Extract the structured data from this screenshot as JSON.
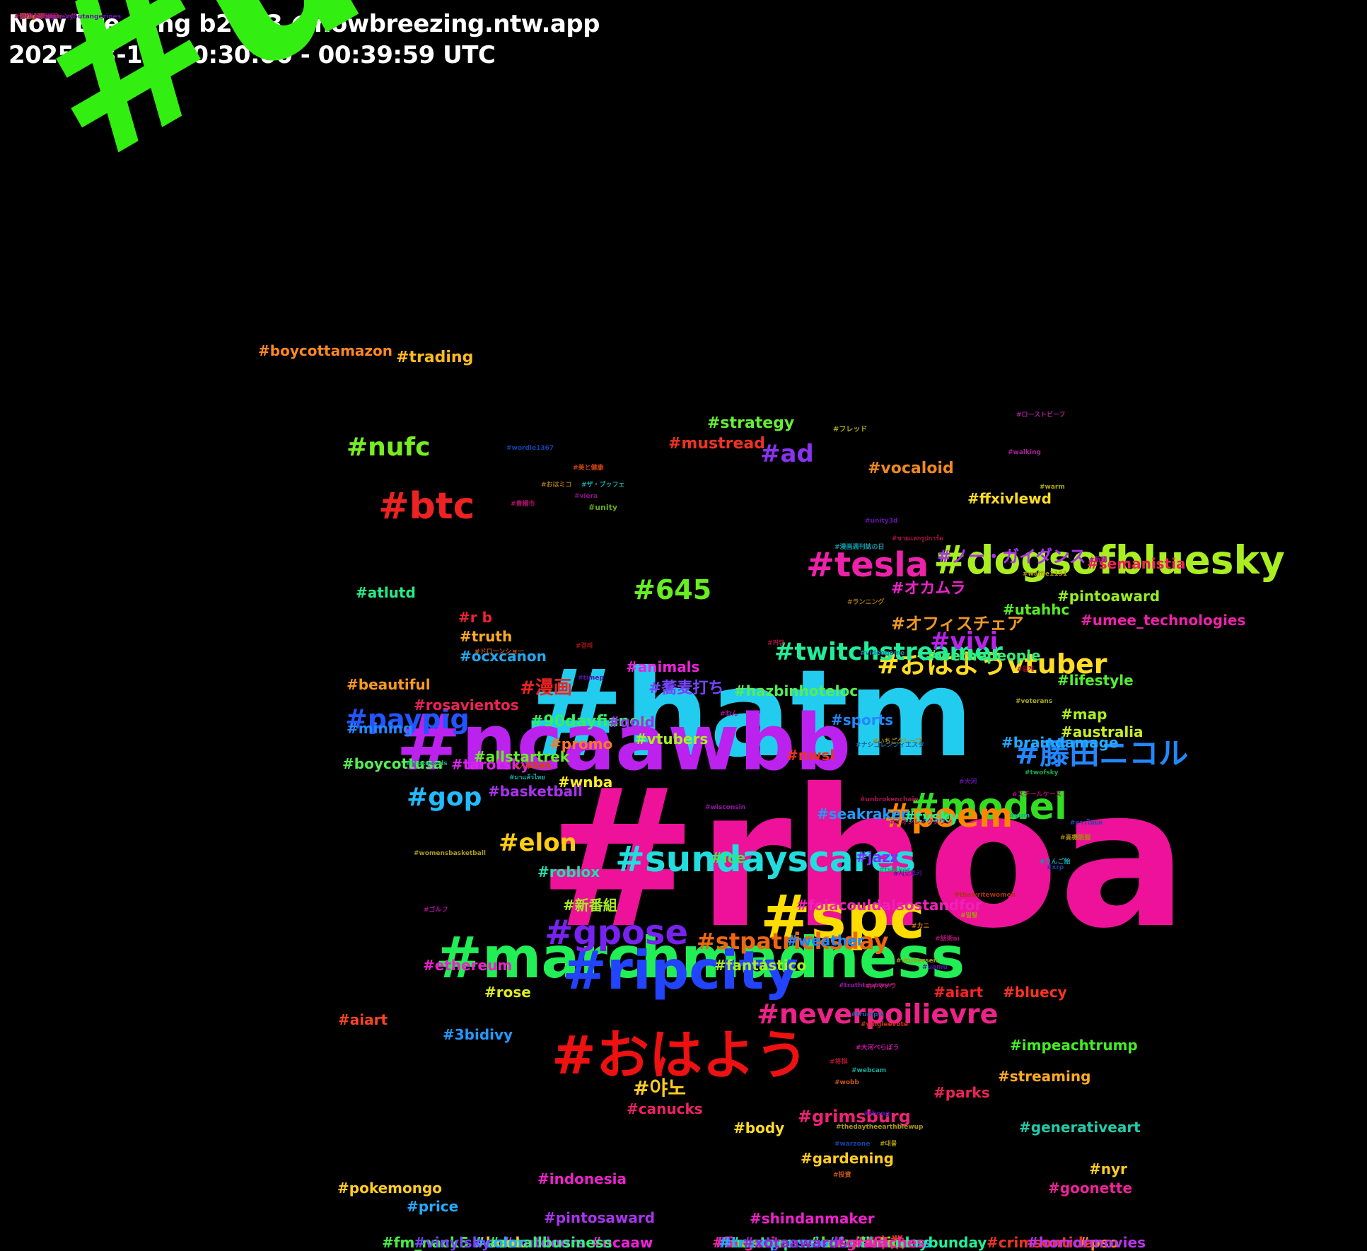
{
  "header": {
    "title": "Now Breezing b2.9.3 @nowbreezing.ntw.app",
    "subtitle": "2025-03-17, 00:30:00 - 00:39:59 UTC"
  },
  "tags": [
    {
      "text": "#unrivaled",
      "color": "#33ee11"
    },
    {
      "text": "#rhoa",
      "color": "#ee1199"
    },
    {
      "text": "#hatm",
      "color": "#22ccee"
    },
    {
      "text": "#ncaawbb",
      "color": "#bb22ee"
    },
    {
      "text": "#marchmadness",
      "color": "#22ee55"
    },
    {
      "text": "#spc",
      "color": "#ffdd00"
    },
    {
      "text": "#おはよう",
      "color": "#ee1111"
    },
    {
      "text": "#ripcity",
      "color": "#2244ff"
    },
    {
      "text": "#sundayscares",
      "color": "#22dddd"
    },
    {
      "text": "#model",
      "color": "#33dd22"
    },
    {
      "text": "#gpose",
      "color": "#7722ee"
    },
    {
      "text": "#dogsofbluesky",
      "color": "#aaee22"
    },
    {
      "text": "#tesla",
      "color": "#ee22aa"
    },
    {
      "text": "#poem",
      "color": "#ff8800"
    },
    {
      "text": "#neverpoilievre",
      "color": "#ee2288"
    },
    {
      "text": "#btc",
      "color": "#ee2222"
    },
    {
      "text": "#藤田ニコル",
      "color": "#2288ff"
    },
    {
      "text": "#おはようvtuber",
      "color": "#ffdd22"
    },
    {
      "text": "#paypig",
      "color": "#2255ff"
    },
    {
      "text": "#twitchstreamer",
      "color": "#22ee99"
    },
    {
      "text": "#stpatricksday",
      "color": "#ee6611"
    },
    {
      "text": "#nufc",
      "color": "#77ee22"
    },
    {
      "text": "#ad",
      "color": "#8833ee"
    },
    {
      "text": "#645",
      "color": "#66ee22"
    },
    {
      "text": "#vivi",
      "color": "#bb22ee"
    },
    {
      "text": "#gop",
      "color": "#22bbff"
    },
    {
      "text": "#elon",
      "color": "#ffcc11"
    },
    {
      "text": "#야노",
      "color": "#ffcc22"
    },
    {
      "text": "#grimsburg",
      "color": "#ee2277"
    },
    {
      "text": "#漫画",
      "color": "#ee2222"
    },
    {
      "text": "#90dayfiance",
      "color": "#33ee66"
    },
    {
      "text": "#strategy",
      "color": "#66ee33"
    },
    {
      "text": "#mustread",
      "color": "#ee3322"
    },
    {
      "text": "#trading",
      "color": "#ffbb22"
    },
    {
      "text": "#boycottamazon",
      "color": "#ff8822"
    },
    {
      "text": "#vocaloid",
      "color": "#ee8822"
    },
    {
      "text": "#ffxivlewd",
      "color": "#ffdd22"
    },
    {
      "text": "#ノー・ガイダンス",
      "color": "#aa33ee"
    },
    {
      "text": "#semanistia",
      "color": "#ee2255"
    },
    {
      "text": "#pintoaward",
      "color": "#99ee22"
    },
    {
      "text": "#オカムラ",
      "color": "#ee22cc"
    },
    {
      "text": "#utahhc",
      "color": "#55ee22"
    },
    {
      "text": "#オフィスチェア",
      "color": "#ee9922"
    },
    {
      "text": "#umee_technologies",
      "color": "#ee22aa"
    },
    {
      "text": "#wethepeople",
      "color": "#33ee77"
    },
    {
      "text": "#lifestyle",
      "color": "#55ee33"
    },
    {
      "text": "#map",
      "color": "#aaee22"
    },
    {
      "text": "#australia",
      "color": "#ccee22"
    },
    {
      "text": "#braindamage",
      "color": "#22aaff"
    },
    {
      "text": "#atlutd",
      "color": "#22ee88"
    },
    {
      "text": "#r b",
      "color": "#ee2233"
    },
    {
      "text": "#truth",
      "color": "#ffaa22"
    },
    {
      "text": "#ocxcanon",
      "color": "#22aaee"
    },
    {
      "text": "#animals",
      "color": "#ee22dd"
    },
    {
      "text": "#蕎麦打ち",
      "color": "#7744ff"
    },
    {
      "text": "#hazbinhoteloc",
      "color": "#55ee55"
    },
    {
      "text": "#sports",
      "color": "#2288ff"
    },
    {
      "text": "#beautiful",
      "color": "#ff9922"
    },
    {
      "text": "#rosavientos",
      "color": "#ee2255"
    },
    {
      "text": "#gold",
      "color": "#9933ee"
    },
    {
      "text": "#mining",
      "color": "#2288ff"
    },
    {
      "text": "#allstartrek",
      "color": "#66ee22"
    },
    {
      "text": "#vtubers",
      "color": "#aaee22"
    },
    {
      "text": "#tarotsky",
      "color": "#dd22ee"
    },
    {
      "text": "#promo",
      "color": "#ff7722"
    },
    {
      "text": "#nwsl",
      "color": "#ee3322"
    },
    {
      "text": "#boycottusa",
      "color": "#55ee55"
    },
    {
      "text": "#wnba",
      "color": "#ffee22"
    },
    {
      "text": "#basketball",
      "color": "#aa33ee"
    },
    {
      "text": "#seakraken",
      "color": "#2299ff"
    },
    {
      "text": "#tvsky",
      "color": "#22ee99"
    },
    {
      "text": "#jazz",
      "color": "#7733ff"
    },
    {
      "text": "#ice",
      "color": "#33ee55"
    },
    {
      "text": "#roblox",
      "color": "#22ddaa"
    },
    {
      "text": "#新番組",
      "color": "#aaee22"
    },
    {
      "text": "#foiacouldalsostandfor",
      "color": "#ee22bb"
    },
    {
      "text": "#weather",
      "color": "#2288ff"
    },
    {
      "text": "#fantástico",
      "color": "#aaee22"
    },
    {
      "text": "#ethereum",
      "color": "#ee22cc"
    },
    {
      "text": "#rose",
      "color": "#ddee22"
    },
    {
      "text": "#bluecy",
      "color": "#ff3322"
    },
    {
      "text": "#aiart",
      "color": "#ff2222"
    },
    {
      "text": "#aiart",
      "color": "#ff4422"
    },
    {
      "text": "#3bidivy",
      "color": "#2299ff"
    },
    {
      "text": "#impeachtrump",
      "color": "#44ee22"
    },
    {
      "text": "#streaming",
      "color": "#ffaa22"
    },
    {
      "text": "#parks",
      "color": "#ee2255"
    },
    {
      "text": "#generativeart",
      "color": "#22ccaa"
    },
    {
      "text": "#canucks",
      "color": "#ee2266"
    },
    {
      "text": "#body",
      "color": "#ffdd22"
    },
    {
      "text": "#gardening",
      "color": "#ffcc22"
    },
    {
      "text": "#nyr",
      "color": "#ffcc22"
    },
    {
      "text": "#pokemongo",
      "color": "#ffcc22"
    },
    {
      "text": "#indonesia",
      "color": "#ee22cc"
    },
    {
      "text": "#goonette",
      "color": "#ee2299"
    },
    {
      "text": "#price",
      "color": "#22aaff"
    },
    {
      "text": "#pintosaward",
      "color": "#aa33ee"
    },
    {
      "text": "#shindanmaker",
      "color": "#ee22cc"
    },
    {
      "text": "#beauty",
      "color": "#7744ff"
    },
    {
      "text": "#entrepreneur",
      "color": "#33ee88"
    },
    {
      "text": "#ncaaw",
      "color": "#ee22dd"
    },
    {
      "text": "#bookworms",
      "color": "#22aaff"
    },
    {
      "text": "#卒業",
      "color": "#ee3322"
    },
    {
      "text": "#humiliation",
      "color": "#66ee22"
    },
    {
      "text": "#sundaybunday",
      "color": "#22ee99"
    },
    {
      "text": "#pso",
      "color": "#ff8822"
    },
    {
      "text": "#crimsontide",
      "color": "#ee3322"
    },
    {
      "text": "#outdoors",
      "color": "#aa33ee"
    },
    {
      "text": "#book",
      "color": "#ffcc22"
    },
    {
      "text": "#fm_nack5",
      "color": "#44ee44"
    },
    {
      "text": "#smallbusiness",
      "color": "#33ee77"
    },
    {
      "text": "#color",
      "color": "#22aaff"
    },
    {
      "text": "#lingerie",
      "color": "#ee2288"
    },
    {
      "text": "#vinylsky",
      "color": "#7744ff"
    },
    {
      "text": "#nascar",
      "color": "#55ee22"
    },
    {
      "text": "#horrormovies",
      "color": "#bb33ee"
    },
    {
      "text": "#witches",
      "color": "#ee22aa"
    },
    {
      "text": "#trumpcession",
      "color": "#22aaff"
    },
    {
      "text": "#grafa",
      "color": "#ee22aa"
    },
    {
      "text": "#xotaawards",
      "color": "#9922cc"
    },
    {
      "text": "#wordle1367",
      "color": "#1144aa"
    },
    {
      "text": "#ローストビーフ",
      "color": "#aa2299"
    },
    {
      "text": "#フレッド",
      "color": "#aaaa11"
    },
    {
      "text": "#walking",
      "color": "#aa2299"
    },
    {
      "text": "#美と健康",
      "color": "#cc4411"
    },
    {
      "text": "#おはミコ",
      "color": "#aa7711"
    },
    {
      "text": "#ザ・ブッフェ",
      "color": "#11aaaa"
    },
    {
      "text": "#unity",
      "color": "#66aa11"
    },
    {
      "text": "#viera",
      "color": "#881188"
    },
    {
      "text": "#豊橋市",
      "color": "#aa1166"
    },
    {
      "text": "#warm",
      "color": "#aaaa11"
    },
    {
      "text": "#unity3d",
      "color": "#6611aa"
    },
    {
      "text": "#ขายเเลกรูปการ์ด",
      "color": "#aa1144"
    },
    {
      "text": "#漫画週刊誌の日",
      "color": "#1199aa"
    },
    {
      "text": "#waffle1151",
      "color": "#aa9911"
    },
    {
      "text": "#新橋",
      "color": "#aa1199"
    },
    {
      "text": "#ランニング",
      "color": "#aa7711"
    },
    {
      "text": "#ドローンショー",
      "color": "#cc5511"
    },
    {
      "text": "#결례",
      "color": "#aa1111"
    },
    {
      "text": "#커뮤",
      "color": "#aa1144"
    },
    {
      "text": "#videogame",
      "color": "#1188aa"
    },
    {
      "text": "#일케",
      "color": "#aa1133"
    },
    {
      "text": "#timep",
      "color": "#5511aa"
    },
    {
      "text": "#veterans",
      "color": "#aaaa11"
    },
    {
      "text": "#ねん",
      "color": "#aa1199"
    },
    {
      "text": "#いちごクレープ",
      "color": "#aa8811"
    },
    {
      "text": "#ナシゴレンフィエスタ",
      "color": "#1166aa"
    },
    {
      "text": "#troconuds",
      "color": "#11aa77"
    },
    {
      "text": "#人事図書館",
      "color": "#cc4411"
    },
    {
      "text": "#twofsky",
      "color": "#11aa44"
    },
    {
      "text": "#大河",
      "color": "#6611aa"
    },
    {
      "text": "#スチールケース",
      "color": "#aa1166"
    },
    {
      "text": "#มาแล้วไทย",
      "color": "#11aaaa"
    },
    {
      "text": "#unbrokenchain",
      "color": "#aa1155"
    },
    {
      "text": "#wisconsin",
      "color": "#9911aa"
    },
    {
      "text": "#yum",
      "color": "#11aa99"
    },
    {
      "text": "#イオンレイクタウン",
      "color": "#aa1188"
    },
    {
      "text": "#高機能服",
      "color": "#aa8811"
    },
    {
      "text": "#ดาวโหมด",
      "color": "#2244aa"
    },
    {
      "text": "#womensbasketball",
      "color": "#aa9911"
    },
    {
      "text": "#りんご飴",
      "color": "#1199aa"
    },
    {
      "text": "#시오후키",
      "color": "#5511aa"
    },
    {
      "text": "#xrp",
      "color": "#1144aa"
    },
    {
      "text": "#tracker",
      "color": "#11aa55"
    },
    {
      "text": "#thewritewomen",
      "color": "#aa3311"
    },
    {
      "text": "#일탈",
      "color": "#aa9911"
    },
    {
      "text": "#ゴルフ",
      "color": "#aa1199"
    },
    {
      "text": "#カニ",
      "color": "#cc7711"
    },
    {
      "text": "#話術ai",
      "color": "#aa1177"
    },
    {
      "text": "#vtubersen",
      "color": "#aa9911"
    },
    {
      "text": "#uamu",
      "color": "#5511aa"
    },
    {
      "text": "#truthtopower",
      "color": "#9911aa"
    },
    {
      "text": "#イマソラ",
      "color": "#aa2244"
    },
    {
      "text": "#trump's",
      "color": "#1166aa"
    },
    {
      "text": "#yingleevote",
      "color": "#cc3311"
    },
    {
      "text": "#大河べらぼう",
      "color": "#cc11aa"
    },
    {
      "text": "#将棋",
      "color": "#aa1133"
    },
    {
      "text": "#webcam",
      "color": "#11aa99"
    },
    {
      "text": "#wobb",
      "color": "#cc5511"
    },
    {
      "text": "#thong",
      "color": "#5511aa"
    },
    {
      "text": "#thedaytheearthblewup",
      "color": "#aa9911"
    },
    {
      "text": "#warzone",
      "color": "#1144aa"
    },
    {
      "text": "#대물",
      "color": "#aa9911"
    },
    {
      "text": "#投資",
      "color": "#cc5511"
    },
    {
      "text": "#フォトウェディング",
      "color": "#aa1166"
    },
    {
      "text": "#tvi",
      "color": "#1199aa"
    },
    {
      "text": "#河色ミク",
      "color": "#aa1144"
    },
    {
      "text": "#witchcraft",
      "color": "#aa1188"
    },
    {
      "text": "#whenlifegivesyoutangerines",
      "color": "#6611aa"
    },
    {
      "text": "#timetohunt",
      "color": "#aa3311"
    },
    {
      "text": "#펨섭",
      "color": "#aa9911"
    },
    {
      "text": "#trackercbs",
      "color": "#1166aa"
    },
    {
      "text": "#강한남자",
      "color": "#aa7711"
    },
    {
      "text": "#witch",
      "color": "#aa11aa"
    },
    {
      "text": "#view",
      "color": "#11aa77"
    },
    {
      "text": "#ブライダル",
      "color": "#aa3311"
    },
    {
      "text": "#サマナチュラ",
      "color": "#aa1177"
    },
    {
      "text": "#tonga",
      "color": "#cc3311"
    },
    {
      "text": "#wwx",
      "color": "#aa9911"
    },
    {
      "text": "#writerslife",
      "color": "#aa1188"
    }
  ]
}
